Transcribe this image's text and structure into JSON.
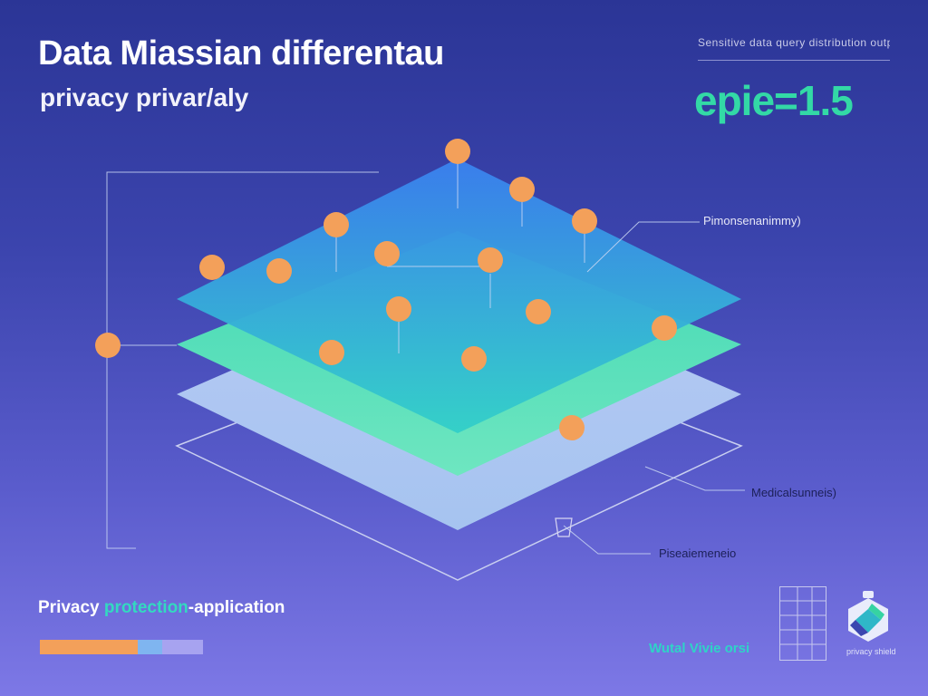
{
  "title": {
    "line1": "Data Miassian differentau",
    "line2": "privacy privar/aly"
  },
  "header_caption": "Sensitive data query distribution output",
  "epsilon_label": "epie=1.5",
  "callouts": {
    "top": "Pimonsenanimmy)",
    "middle": "Medicalsunneis)",
    "bottom": "Piseaiemeneio"
  },
  "footer": {
    "label_prefix": "Privacy ",
    "label_accent": "protection",
    "label_suffix": "-application"
  },
  "progress": {
    "segments": [
      {
        "fraction": 0.6,
        "color": "#f3a05a"
      },
      {
        "fraction": 0.15,
        "color": "#7fb5f0"
      },
      {
        "fraction": 0.25,
        "color": "#a7a3f0"
      }
    ]
  },
  "bottom_caption": "Wutal Vivie orsi",
  "brand_text": "privacy shield",
  "colors": {
    "background_top": "#2b3596",
    "background_bottom": "#7d78e6",
    "accent_green": "#33d9a6",
    "node_orange": "#f3a05a",
    "layer_top_from": "#3a86ee",
    "layer_top_to": "#35d8c8",
    "layer_middle": "#47e0b5",
    "layer_bottom": "#a9c7f2"
  },
  "icons": [
    "grid-icon",
    "shield-logo-icon"
  ]
}
